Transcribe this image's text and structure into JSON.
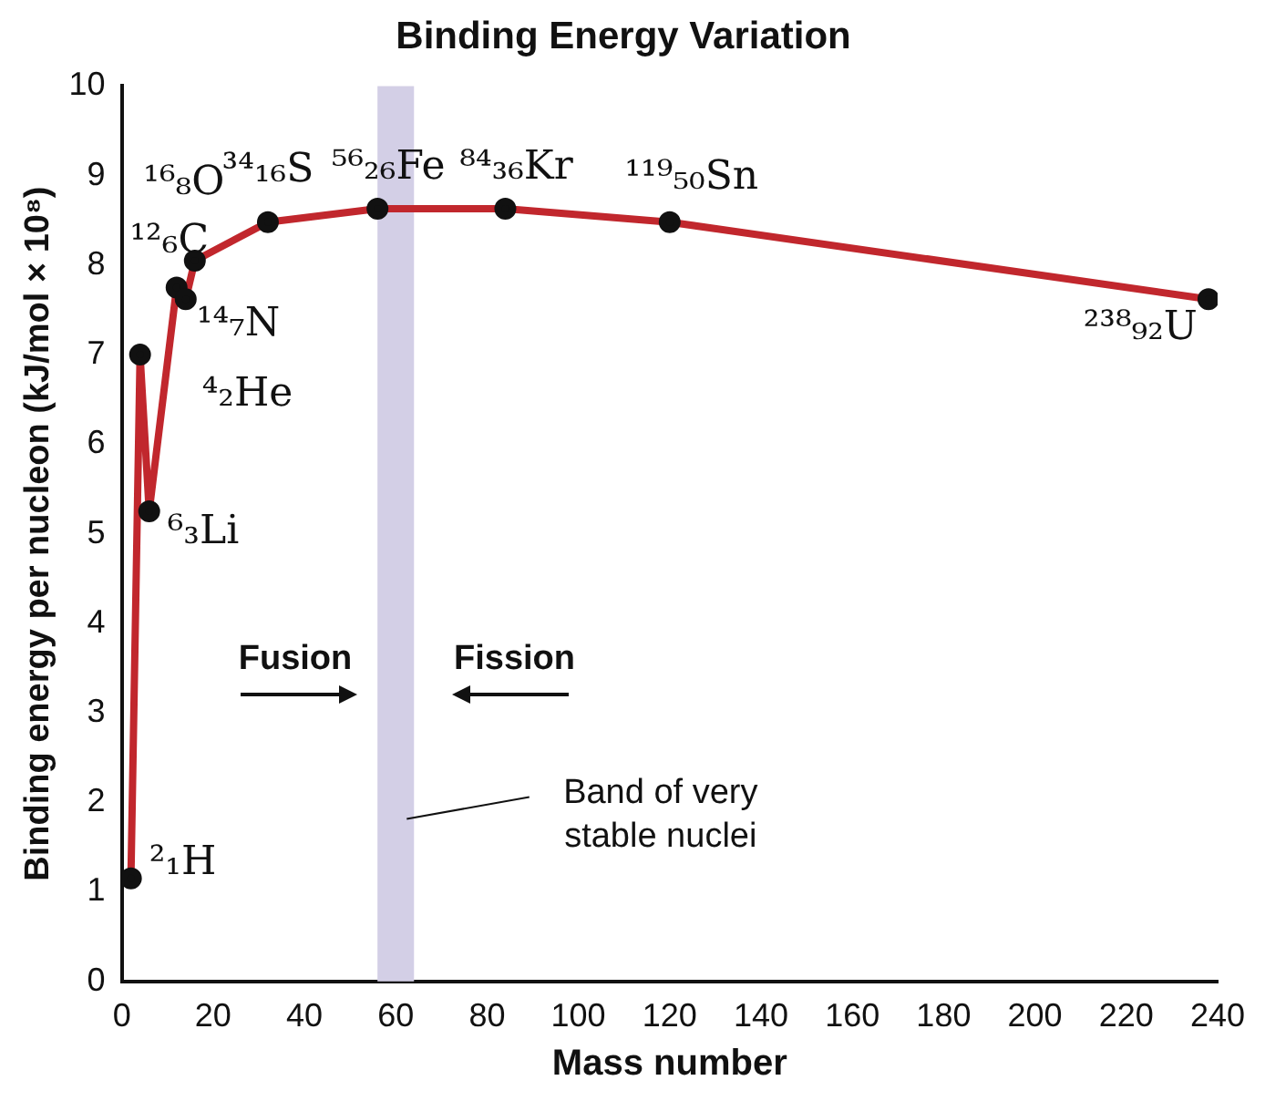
{
  "chart_data": {
    "type": "line",
    "title": "Binding Energy Variation",
    "xlabel": "Mass number",
    "ylabel": "Binding energy per nucleon (kJ/mol × 10⁸)",
    "series": [
      {
        "color": "#c1272d",
        "x": [
          2,
          4,
          6,
          12,
          14,
          16,
          32,
          56,
          84,
          120,
          238
        ],
        "values": [
          1.15,
          7.0,
          5.25,
          7.75,
          7.62,
          8.05,
          8.48,
          8.63,
          8.63,
          8.48,
          7.62
        ]
      }
    ],
    "xlim": [
      0,
      240
    ],
    "xticks": [
      0,
      20,
      40,
      60,
      80,
      100,
      120,
      140,
      160,
      180,
      200,
      220,
      240
    ],
    "ylim": [
      0,
      10
    ],
    "yticks": [
      0,
      1,
      2,
      3,
      4,
      5,
      6,
      7,
      8,
      9,
      10
    ],
    "grid": false,
    "legend": false,
    "marker": "circle",
    "line_style": "solid",
    "bands": [
      {
        "axis": "x",
        "from": 56,
        "to": 64,
        "label": "Band of very stable nuclei",
        "color": "#d3cfe6"
      }
    ],
    "annotations": [
      {
        "text": "²₁H",
        "x": 2,
        "y": 1.15
      },
      {
        "text": "⁴₂He",
        "x": 4,
        "y": 7.0
      },
      {
        "text": "⁶₃Li",
        "x": 6,
        "y": 5.25
      },
      {
        "text": "¹²₆C",
        "x": 12,
        "y": 7.75
      },
      {
        "text": "¹⁴₇N",
        "x": 14,
        "y": 7.62
      },
      {
        "text": "¹⁶₈O",
        "x": 16,
        "y": 8.05
      },
      {
        "text": "³⁴₁₆S",
        "x": 32,
        "y": 8.48
      },
      {
        "text": "⁵⁶₂₆Fe",
        "x": 56,
        "y": 8.63
      },
      {
        "text": "⁸⁴₃₆Kr",
        "x": 84,
        "y": 8.63
      },
      {
        "text": "¹¹⁹₅₀Sn",
        "x": 120,
        "y": 8.48
      },
      {
        "text": "²³⁸₉₂U",
        "x": 238,
        "y": 7.62
      },
      "Fusion",
      "Fission"
    ]
  }
}
